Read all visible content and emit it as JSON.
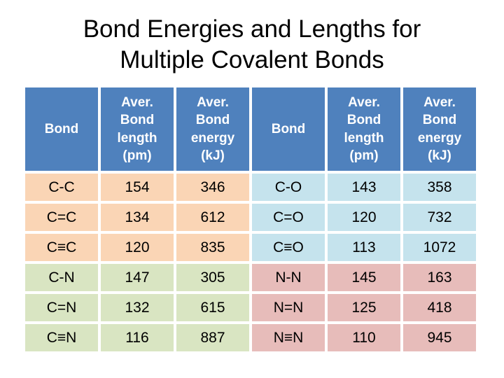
{
  "title": {
    "line1": "Bond Energies and Lengths for",
    "line2": "Multiple Covalent Bonds"
  },
  "table": {
    "headers": [
      "Bond",
      "Aver. Bond length (pm)",
      "Aver. Bond energy (kJ)",
      "Bond",
      "Aver. Bond length (pm)",
      "Aver. Bond energy (kJ)"
    ],
    "rows": [
      [
        "C-C",
        "154",
        "346",
        "C-O",
        "143",
        "358"
      ],
      [
        "C=C",
        "134",
        "612",
        "C=O",
        "120",
        "732"
      ],
      [
        "C≡C",
        "120",
        "835",
        "C≡O",
        "113",
        "1072"
      ],
      [
        "C-N",
        "147",
        "305",
        "N-N",
        "145",
        "163"
      ],
      [
        "C=N",
        "132",
        "615",
        "N=N",
        "125",
        "418"
      ],
      [
        "C≡N",
        "116",
        "887",
        "N≡N",
        "110",
        "945"
      ]
    ],
    "colors": {
      "header_bg": "#4F81BD",
      "header_text": "#FFFFFF",
      "carbon_carbon_bg": "#FAD5B5",
      "carbon_oxygen_bg": "#C5E3ED",
      "carbon_nitrogen_bg": "#D9E5C2",
      "nitrogen_nitrogen_bg": "#E7BCBA",
      "body_text": "#000000",
      "title_text": "#000000",
      "gap": "#FFFFFF"
    }
  }
}
